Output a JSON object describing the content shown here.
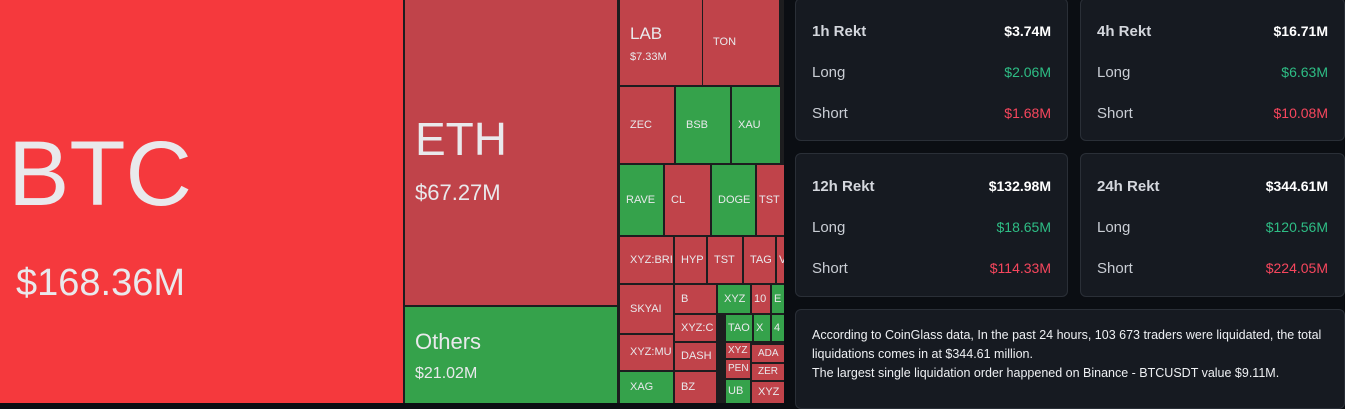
{
  "treemap": {
    "cells": [
      {
        "label": "BTC",
        "value": "$168.36M"
      },
      {
        "label": "ETH",
        "value": "$67.27M"
      },
      {
        "label": "Others",
        "value": "$21.02M"
      },
      {
        "label": "LAB",
        "value": "$7.33M"
      },
      {
        "label": "TON"
      },
      {
        "label": "ZEC"
      },
      {
        "label": "BSB"
      },
      {
        "label": "XAU"
      },
      {
        "label": "RAVE"
      },
      {
        "label": "CL"
      },
      {
        "label": "DOGE"
      },
      {
        "label": "TST"
      },
      {
        "label": "XYZ:BRI"
      },
      {
        "label": "HYP"
      },
      {
        "label": "TST"
      },
      {
        "label": "TAG"
      },
      {
        "label": "V"
      },
      {
        "label": "SKYAI"
      },
      {
        "label": "XYZ:MU"
      },
      {
        "label": "XAG"
      },
      {
        "label": "B"
      },
      {
        "label": "XYZ:C"
      },
      {
        "label": "DASH"
      },
      {
        "label": "BZ"
      },
      {
        "label": "XYZ"
      },
      {
        "label": "10"
      },
      {
        "label": "E"
      },
      {
        "label": "TAO"
      },
      {
        "label": "X"
      },
      {
        "label": "4"
      },
      {
        "label": "XYZ"
      },
      {
        "label": "ADA"
      },
      {
        "label": "PEN"
      },
      {
        "label": "ZER"
      },
      {
        "label": "UB"
      },
      {
        "label": "XYZ"
      }
    ]
  },
  "stats": [
    {
      "title": "1h Rekt",
      "total": "$3.74M",
      "rows": [
        {
          "label": "Long",
          "value": "$2.06M"
        },
        {
          "label": "Short",
          "value": "$1.68M"
        }
      ]
    },
    {
      "title": "4h Rekt",
      "total": "$16.71M",
      "rows": [
        {
          "label": "Long",
          "value": "$6.63M"
        },
        {
          "label": "Short",
          "value": "$10.08M"
        }
      ]
    },
    {
      "title": "12h Rekt",
      "total": "$132.98M",
      "rows": [
        {
          "label": "Long",
          "value": "$18.65M"
        },
        {
          "label": "Short",
          "value": "$114.33M"
        }
      ]
    },
    {
      "title": "24h Rekt",
      "total": "$344.61M",
      "rows": [
        {
          "label": "Long",
          "value": "$120.56M"
        },
        {
          "label": "Short",
          "value": "$224.05M"
        }
      ]
    }
  ],
  "summary": [
    "According to CoinGlass data, In the past 24 hours, 103 673 traders were liquidated, the total liquidations comes in at $344.61 million.",
    "The largest single liquidation order happened on Binance - BTCUSDT value $9.11M."
  ]
}
